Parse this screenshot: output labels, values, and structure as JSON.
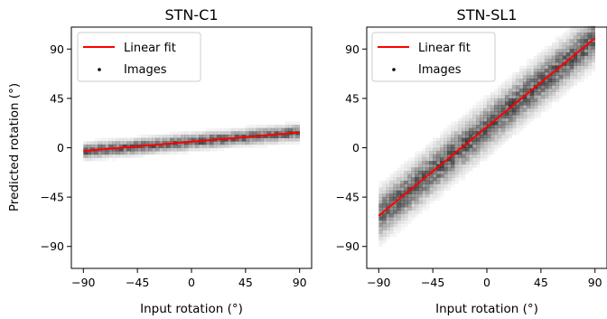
{
  "chart_data": [
    {
      "type": "scatter",
      "title": "STN-C1",
      "xlabel": "Input rotation (°)",
      "ylabel": "Predicted rotation (°)",
      "xlim": [
        -100,
        100
      ],
      "ylim": [
        -110,
        110
      ],
      "xticks": [
        "−90",
        "−45",
        "0",
        "45",
        "90"
      ],
      "yticks": [
        "−90",
        "−45",
        "0",
        "45",
        "90"
      ],
      "grid": false,
      "legend_position": "top-left",
      "series": [
        {
          "name": "Linear fit",
          "kind": "line",
          "color": "#ff0000",
          "x": [
            -90,
            90
          ],
          "y": [
            -3,
            14
          ]
        },
        {
          "name": "Images",
          "kind": "density",
          "color": "#000000",
          "spread": 4
        }
      ]
    },
    {
      "type": "scatter",
      "title": "STN-SL1",
      "xlabel": "Input rotation (°)",
      "ylabel": "",
      "xlim": [
        -100,
        100
      ],
      "ylim": [
        -110,
        110
      ],
      "xticks": [
        "−90",
        "−45",
        "0",
        "45",
        "90"
      ],
      "yticks": [
        "−90",
        "−45",
        "0",
        "45",
        "90"
      ],
      "grid": false,
      "legend_position": "top-left",
      "series": [
        {
          "name": "Linear fit",
          "kind": "line",
          "color": "#ff0000",
          "x": [
            -90,
            90
          ],
          "y": [
            -62,
            100
          ]
        },
        {
          "name": "Images",
          "kind": "density",
          "color": "#000000",
          "spread": 12
        }
      ]
    }
  ]
}
